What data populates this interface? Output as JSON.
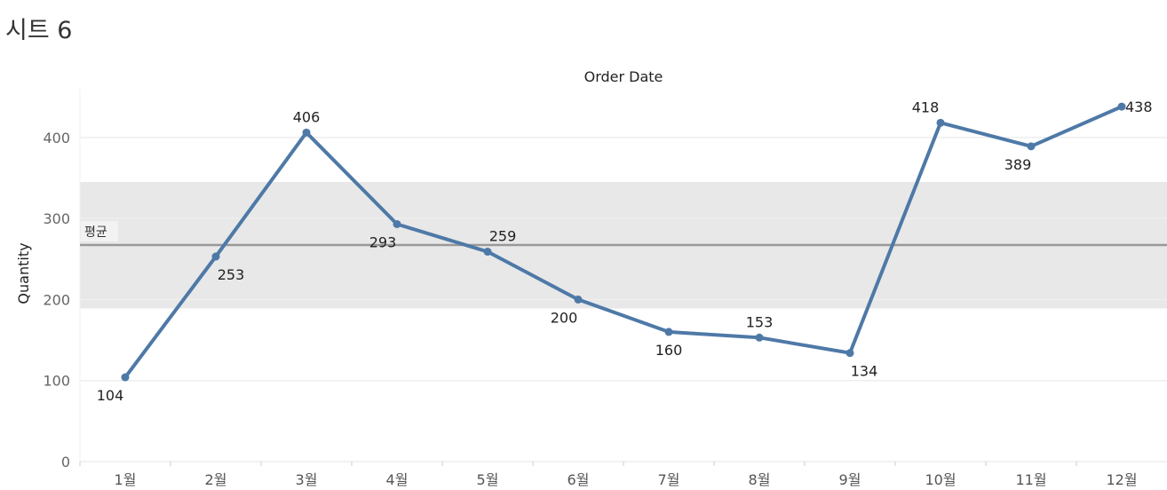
{
  "sheet": {
    "title": "시트 6"
  },
  "chart_data": {
    "type": "line",
    "title": "",
    "xlabel": "Order Date",
    "ylabel": "Quantity",
    "categories": [
      "1월",
      "2월",
      "3월",
      "4월",
      "5월",
      "6월",
      "7월",
      "8월",
      "9월",
      "10월",
      "11월",
      "12월"
    ],
    "series": [
      {
        "values": [
          104,
          253,
          406,
          293,
          259,
          200,
          160,
          153,
          134,
          418,
          389,
          438
        ]
      }
    ],
    "ylim": [
      0,
      480
    ],
    "yticks": [
      0,
      100,
      200,
      300,
      400
    ],
    "reference_line": {
      "label": "평균",
      "value": 267.3
    },
    "reference_band": [
      189,
      345
    ],
    "grid": true,
    "colors": {
      "line": "#4e79a7",
      "band": "#e8e8e8",
      "ref": "#999999",
      "grid": "#eeeeee"
    }
  }
}
